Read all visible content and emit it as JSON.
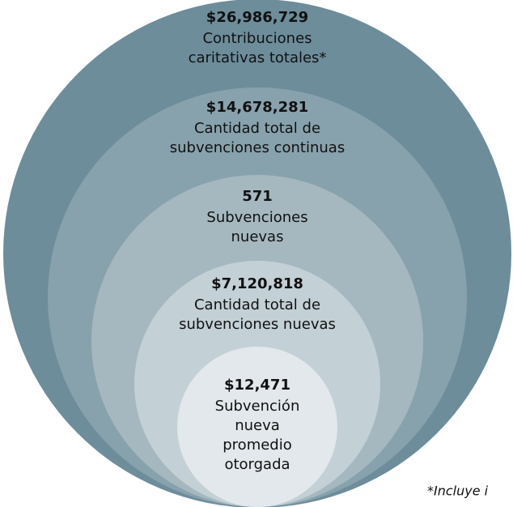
{
  "nodes": [
    {
      "value": "$26,986,729",
      "lines": [
        "Contribuciones",
        "caritativas totales*"
      ]
    },
    {
      "value": "$14,678,281",
      "lines": [
        "Cantidad total de",
        "subvenciones continuas"
      ]
    },
    {
      "value": "571",
      "lines": [
        "Subvenciones",
        "nuevas"
      ]
    },
    {
      "value": "$7,120,818",
      "lines": [
        "Cantidad total de",
        "subvenciones nuevas"
      ]
    },
    {
      "value": "$12,471",
      "lines": [
        "Subvención",
        "nueva",
        "promedio",
        "otorgada"
      ]
    }
  ],
  "footnote": "*Incluye i"
}
